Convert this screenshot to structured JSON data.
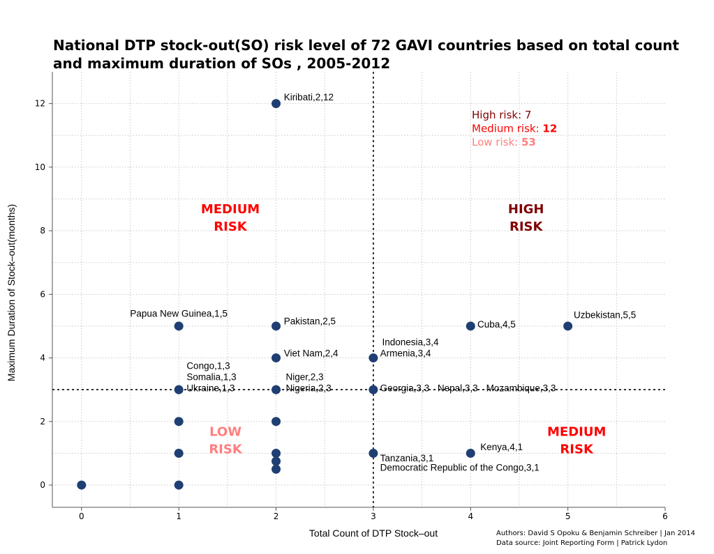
{
  "chart_data": {
    "type": "scatter",
    "title_line1": "National DTP stock-out(SO) risk level of 72 GAVI countries based on total count",
    "title_line2": "and maximum duration of SOs , 2005-2012",
    "xlabel": "Total Count of DTP Stock–out",
    "ylabel": "Maximum Duration of Stock–out(months)",
    "xlim": [
      -0.3,
      6
    ],
    "ylim": [
      -0.7,
      13
    ],
    "xticks": [
      0,
      1,
      2,
      3,
      4,
      5,
      6
    ],
    "yticks": [
      0,
      2,
      4,
      6,
      8,
      10,
      12
    ],
    "grid": true,
    "threshold_x": 3,
    "threshold_y": 3,
    "point_color": "#1f3f73",
    "points": [
      {
        "x": 0,
        "y": 0
      },
      {
        "x": 1,
        "y": 0
      },
      {
        "x": 1,
        "y": 1
      },
      {
        "x": 1,
        "y": 2
      },
      {
        "x": 1,
        "y": 3
      },
      {
        "x": 1,
        "y": 5
      },
      {
        "x": 2,
        "y": 0.5
      },
      {
        "x": 2,
        "y": 0.75
      },
      {
        "x": 2,
        "y": 1
      },
      {
        "x": 2,
        "y": 2
      },
      {
        "x": 2,
        "y": 3
      },
      {
        "x": 2,
        "y": 4
      },
      {
        "x": 2,
        "y": 5
      },
      {
        "x": 2,
        "y": 12
      },
      {
        "x": 3,
        "y": 1
      },
      {
        "x": 3,
        "y": 3
      },
      {
        "x": 3,
        "y": 4
      },
      {
        "x": 4,
        "y": 1
      },
      {
        "x": 4,
        "y": 5
      },
      {
        "x": 5,
        "y": 5
      }
    ],
    "annotations": [
      {
        "text": "Kiribati,2,12",
        "x": 2.08,
        "y": 12.1,
        "anchor": "start"
      },
      {
        "text": "Papua New Guinea,1,5",
        "x": 1.0,
        "y": 5.3,
        "anchor": "middle"
      },
      {
        "text": "Pakistan,2,5",
        "x": 2.08,
        "y": 5.05,
        "anchor": "start"
      },
      {
        "text": "Viet Nam,2,4",
        "x": 2.08,
        "y": 4.05,
        "anchor": "start"
      },
      {
        "text": "Congo,1,3",
        "x": 1.08,
        "y": 3.65,
        "anchor": "start"
      },
      {
        "text": "Somalia,1,3",
        "x": 1.08,
        "y": 3.3,
        "anchor": "start"
      },
      {
        "text": "Ukraine,1,3",
        "x": 1.08,
        "y": 2.95,
        "anchor": "start"
      },
      {
        "text": "Niger,2,3",
        "x": 2.1,
        "y": 3.3,
        "anchor": "start"
      },
      {
        "text": "Nigeria,2,3",
        "x": 2.1,
        "y": 2.95,
        "anchor": "start"
      },
      {
        "text": "Indonesia,3,4",
        "x": 3.09,
        "y": 4.4,
        "anchor": "start"
      },
      {
        "text": "Armenia,3,4",
        "x": 3.07,
        "y": 4.05,
        "anchor": "start"
      },
      {
        "text": "Georgia,3,3",
        "x": 3.07,
        "y": 2.95,
        "anchor": "start"
      },
      {
        "text": "Nepal,3,3",
        "x": 3.66,
        "y": 2.95,
        "anchor": "start"
      },
      {
        "text": "Mozambique,3,3",
        "x": 4.16,
        "y": 2.95,
        "anchor": "start"
      },
      {
        "text": "Cuba,4,5",
        "x": 4.07,
        "y": 4.95,
        "anchor": "start"
      },
      {
        "text": "Uzbekistan,5,5",
        "x": 5.06,
        "y": 5.25,
        "anchor": "start"
      },
      {
        "text": "Kenya,4,1",
        "x": 4.1,
        "y": 1.1,
        "anchor": "start"
      },
      {
        "text": "Tanzania,3,1",
        "x": 3.07,
        "y": 0.75,
        "anchor": "start"
      },
      {
        "text": "Democratic Republic of the Congo,3,1",
        "x": 3.07,
        "y": 0.45,
        "anchor": "start"
      }
    ],
    "regions": [
      {
        "line1": "MEDIUM",
        "line2": "RISK",
        "x": 1.53,
        "y": 8.55,
        "color": "#ff0000"
      },
      {
        "line1": "HIGH",
        "line2": "RISK",
        "x": 4.57,
        "y": 8.55,
        "color": "#800000"
      },
      {
        "line1": "LOW",
        "line2": "RISK",
        "x": 1.48,
        "y": 1.55,
        "color": "#ff7f7f"
      },
      {
        "line1": "MEDIUM",
        "line2": "RISK",
        "x": 5.09,
        "y": 1.55,
        "color": "#ff0000"
      }
    ],
    "summary": [
      {
        "label": "High risk: ",
        "value": "7",
        "color": "#800000",
        "value_bold": false
      },
      {
        "label": "Medium risk: ",
        "value": "12",
        "color": "#ff0000",
        "value_bold": true
      },
      {
        "label": "Low risk: ",
        "value": "53",
        "color": "#ff7f7f",
        "value_bold": true
      }
    ]
  },
  "credits": {
    "line1": "Authors: David S Opoku & Benjamin Schreiber | Jan 2014",
    "line2": "Data source: Joint Reporting Form | Patrick Lydon"
  }
}
